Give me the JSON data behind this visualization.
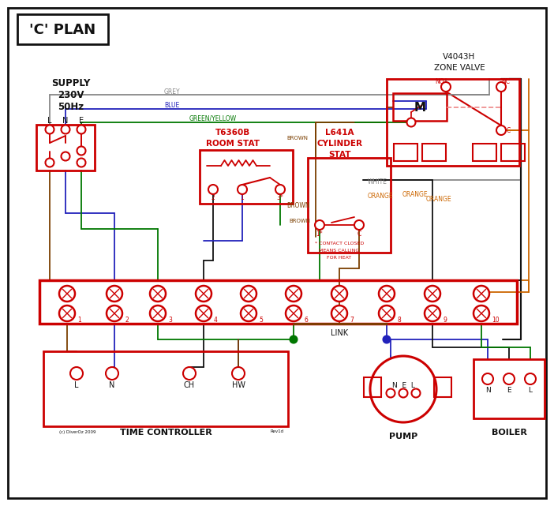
{
  "bg": "#ffffff",
  "RED": "#cc0000",
  "BLUE": "#2222bb",
  "GREEN": "#007700",
  "GREY": "#888888",
  "BROWN": "#7B3F00",
  "ORANGE": "#cc6600",
  "BLACK": "#111111",
  "PINK": "#ee8888",
  "title": "'C' PLAN",
  "supply_text": [
    "SUPPLY",
    "230V",
    "50Hz"
  ],
  "lne": [
    "L",
    "N",
    "E"
  ],
  "zone_title": [
    "V4043H",
    "ZONE VALVE"
  ],
  "room_stat": [
    "T6360B",
    "ROOM STAT"
  ],
  "cyl_stat": [
    "L641A",
    "CYLINDER",
    "STAT"
  ],
  "contact_note": [
    "* CONTACT CLOSED",
    "MEANS CALLING",
    "FOR HEAT"
  ],
  "tc_terminals": [
    "L",
    "N",
    "CH",
    "HW"
  ],
  "tc_label": "TIME CONTROLLER",
  "pump_label": "PUMP",
  "boiler_label": "BOILER",
  "link_label": "LINK",
  "terminal_nums": [
    "1",
    "2",
    "3",
    "4",
    "5",
    "6",
    "7",
    "8",
    "9",
    "10"
  ],
  "wire_grey": "GREY",
  "wire_blue": "BLUE",
  "wire_gy": "GREEN/YELLOW",
  "wire_brown": "BROWN",
  "wire_white": "WHITE",
  "wire_orange": "ORANGE",
  "copyright": "(c) DiverOz 2009",
  "rev": "Rev1d"
}
